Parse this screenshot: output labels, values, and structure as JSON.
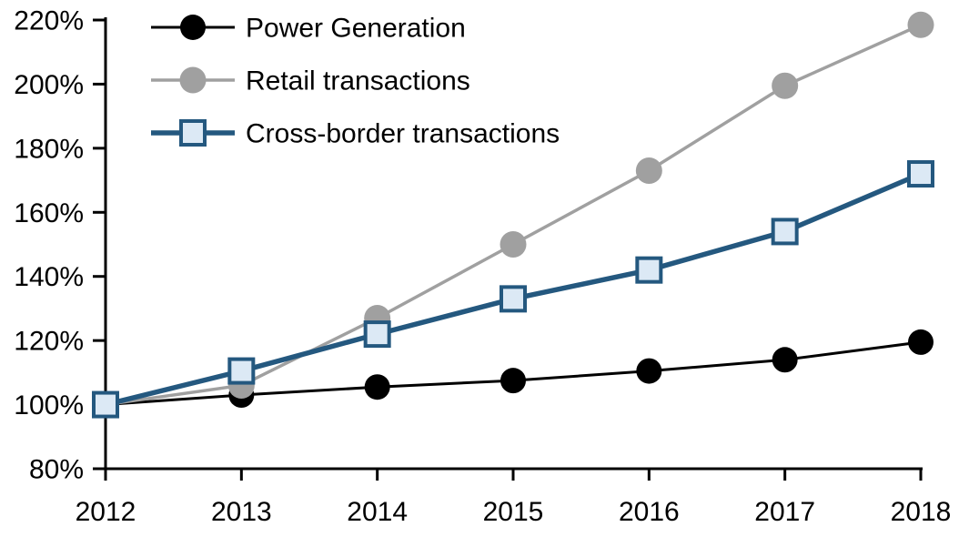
{
  "chart_data": {
    "type": "line",
    "title": "",
    "xlabel": "",
    "ylabel": "",
    "grid": false,
    "legend_position": "top-left",
    "background_color": "#ffffff",
    "axis_color": "#000000",
    "ylim": [
      80,
      220
    ],
    "y_tick_step": 20,
    "x_tick_labels": [
      "2012",
      "2013",
      "2014",
      "2015",
      "2016",
      "2017",
      "2018"
    ],
    "y_tick_values": [
      80,
      100,
      120,
      140,
      160,
      180,
      200,
      220
    ],
    "y_tick_labels": [
      "80%",
      "100%",
      "120%",
      "140%",
      "160%",
      "180%",
      "200%",
      "220%"
    ],
    "series": [
      {
        "name": "Power Generation",
        "values": [
          100,
          103,
          105.5,
          107.5,
          110.5,
          114,
          119.5
        ],
        "color": "#000000",
        "line_width": 3,
        "marker": "circle",
        "marker_fill": "#000000",
        "marker_size": 14
      },
      {
        "name": "Retail transactions",
        "values": [
          100,
          106,
          127,
          150,
          173,
          199.5,
          218.5
        ],
        "color": "#A0A0A0",
        "line_width": 3.5,
        "marker": "circle",
        "marker_fill": "#A0A0A0",
        "marker_size": 14.5
      },
      {
        "name": "Cross-border transactions",
        "values": [
          100,
          110.5,
          122,
          133,
          142,
          154,
          172
        ],
        "color": "#24587F",
        "line_width": 5.5,
        "marker": "square",
        "marker_fill": "#DCE9F5",
        "marker_stroke_width": 4,
        "marker_size": 13
      }
    ]
  }
}
